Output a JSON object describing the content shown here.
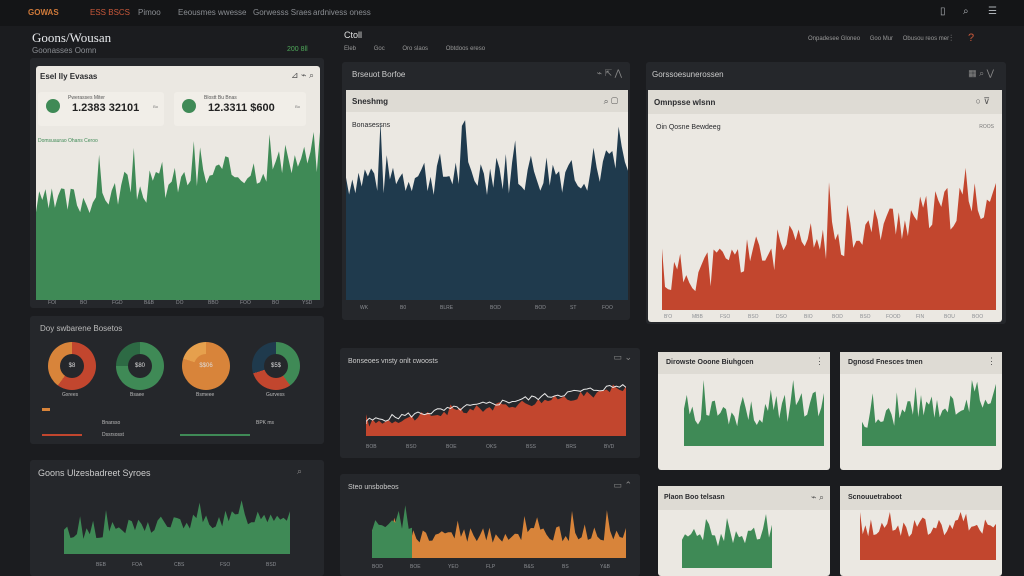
{
  "topbar": {
    "logo": "GOWAS",
    "active": "ESS BSCS",
    "items": [
      "Pimoo",
      "Eeousmes wwesse",
      "Gorwesss Sraes",
      "ardnivess oness"
    ]
  },
  "header": {
    "title": "Goons/Wousan",
    "subtitle": "Goonasses Oomn",
    "subvalue": "200 8ll",
    "filter_title": "Ctoll",
    "filters": [
      "Eleb",
      "Goc",
      "Oro slaos",
      "Obtdoos ereso"
    ],
    "right_filters": [
      "Onpadesee Gloneo",
      "Goo Mur",
      "Obusou reos mer"
    ]
  },
  "p1": {
    "title": "Esel lly Evasas",
    "kpi1": {
      "label": "Pwerasses Miter",
      "value": "1.2383 32101",
      "sub": "Bo"
    },
    "kpi2": {
      "label": "Blostt Bu Bnas",
      "value": "12.3311 $600",
      "sub": "Bo"
    },
    "chart_title": "Domsuaurao Ohans Ceroo",
    "xticks": [
      "FOI",
      "BO",
      "FGD",
      "B&B",
      "DO",
      "BBO",
      "FOO",
      "BO",
      "YSD"
    ]
  },
  "donuts": {
    "title": "Doy swbarene Bosetos",
    "items": [
      {
        "center": "$8",
        "label": "Gxrees"
      },
      {
        "center": "$80",
        "label": "Bsaee"
      },
      {
        "center": "$$06",
        "label": "Bsmeee"
      },
      {
        "center": "$5$",
        "label": "Gurvess"
      }
    ],
    "legend": [
      "Bnarsso",
      "Dssrsosst",
      "BPK ms"
    ]
  },
  "p2": {
    "title": "Brseuot Borfoe",
    "chart_title": "Sneshmg",
    "subtitle": "Bonasessns",
    "xticks": [
      "WK",
      "B0",
      "BLRE",
      "BOD",
      "BOD",
      "ST",
      "FOO"
    ]
  },
  "p3": {
    "title": "Gorssoesunerossen",
    "chart_title": "Omnpsse wlsnn",
    "subtitle": "Oin Qosne Bewdeeg",
    "corner": "ROOS",
    "xticks": [
      "B'O",
      "MBB",
      "FSO",
      "BSO",
      "DSO",
      "BIO",
      "BOD",
      "BSO",
      "FOOD",
      "FIN",
      "BOU",
      "BOO"
    ]
  },
  "p4": {
    "title": "Goons Ulzesbadreet Syroes",
    "xticks": [
      "BEB",
      "FOA",
      "CBS",
      "FSO",
      "BSD"
    ]
  },
  "p5": {
    "title": "Bonseoes vnsty onlt cwoosts",
    "xticks": [
      "BOB",
      "BSO",
      "BOE",
      "OKS",
      "BSS",
      "BRS",
      "BVD"
    ]
  },
  "p6": {
    "title": "Steo unsbobeos",
    "xticks": [
      "BOD",
      "BOE",
      "YEO",
      "FLP",
      "B&S",
      "BS",
      "Y&B"
    ]
  },
  "p7": {
    "title": "Dirowste Ooone Biuhgcen"
  },
  "p8": {
    "title": "Dgnosd Fnesces tmen"
  },
  "p9": {
    "title": "Plaon Boo telsasn"
  },
  "p10": {
    "title": "Scnouuetraboot"
  },
  "colors": {
    "green": "#3f8a56",
    "navy": "#1f3a4d",
    "red": "#c2462e",
    "orange": "#d8843a"
  }
}
